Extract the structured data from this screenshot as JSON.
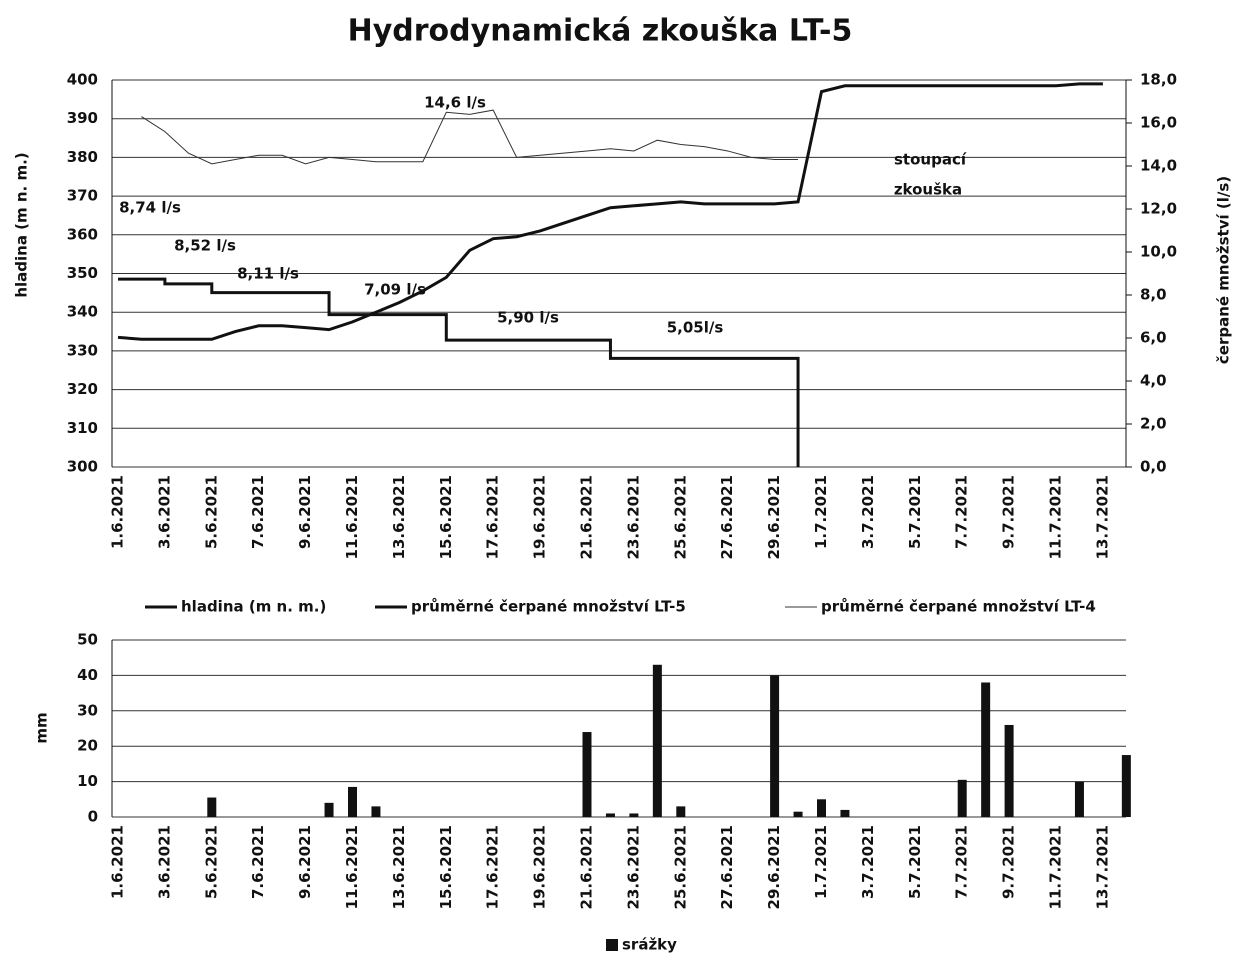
{
  "chart_data": [
    {
      "type": "line",
      "title": "Hydrodynamická zkouška LT-5",
      "ylabel": "hladina (m n. m.)",
      "y2label": "čerpané množství (l/s)",
      "categories": [
        "1.6.2021",
        null,
        "3.6.2021",
        null,
        "5.6.2021",
        null,
        "7.6.2021",
        null,
        "9.6.2021",
        null,
        "11.6.2021",
        null,
        "13.6.2021",
        null,
        "15.6.2021",
        null,
        "17.6.2021",
        null,
        "19.6.2021",
        null,
        "21.6.2021",
        null,
        "23.6.2021",
        null,
        "25.6.2021",
        null,
        "27.6.2021",
        null,
        "29.6.2021",
        null,
        "1.7.2021",
        null,
        "3.7.2021",
        null,
        "5.7.2021",
        null,
        "7.7.2021",
        null,
        "9.7.2021",
        null,
        "11.7.2021",
        null,
        "13.7.2021"
      ],
      "series": [
        {
          "name": "hladina (m n. m.)",
          "color": "#111111",
          "width": 3,
          "values": [
            333.5,
            333,
            333,
            333,
            333,
            335,
            336.5,
            336.5,
            336,
            335.5,
            337.5,
            340,
            342.5,
            345.5,
            349,
            356,
            359,
            359.5,
            361,
            363,
            365,
            367,
            367.5,
            368,
            368.5,
            368,
            368,
            368,
            368,
            368.5,
            397,
            398.5,
            398.5,
            398.5,
            398.5,
            398.5,
            398.5,
            398.5,
            398.5,
            398.5,
            398.5,
            399,
            399
          ]
        },
        {
          "name": "průměrné čerpané množství LT-5",
          "color": "#111111",
          "width": 3,
          "axis": "y2",
          "step": true,
          "values": [
            8.74,
            8.74,
            8.52,
            8.52,
            8.11,
            8.11,
            8.11,
            8.11,
            8.11,
            7.09,
            7.09,
            7.09,
            7.09,
            7.09,
            5.9,
            5.9,
            5.9,
            5.9,
            5.9,
            5.9,
            5.9,
            5.05,
            5.05,
            5.05,
            5.05,
            5.05,
            5.05,
            5.05,
            5.05,
            0,
            null,
            null,
            null,
            null,
            null,
            null,
            null,
            null,
            null,
            null,
            null,
            null,
            null
          ]
        },
        {
          "name": "průměrné čerpané množství LT-4",
          "color": "#333333",
          "width": 1,
          "axis": "y2",
          "values": [
            null,
            16.3,
            15.6,
            14.6,
            14.1,
            14.3,
            14.5,
            14.5,
            14.1,
            14.4,
            14.3,
            14.2,
            14.2,
            14.2,
            16.5,
            16.4,
            16.6,
            14.4,
            14.5,
            14.6,
            14.7,
            14.8,
            14.7,
            15.2,
            15.0,
            14.9,
            14.7,
            14.4,
            14.3,
            14.3,
            null,
            null,
            null,
            null,
            null,
            null,
            null,
            null,
            null,
            null,
            null,
            null,
            null
          ]
        }
      ],
      "annotations": [
        "14,6 l/s",
        "8,74 l/s",
        "8,52 l/s",
        "8,11 l/s",
        "7,09 l/s",
        "5,90 l/s",
        "5,05l/s",
        "stoupací",
        "zkouška"
      ],
      "ylim": [
        300,
        400
      ],
      "yticks": [
        300,
        310,
        320,
        330,
        340,
        350,
        360,
        370,
        380,
        390,
        400
      ],
      "y2lim": [
        0,
        18
      ],
      "y2ticks": [
        {
          "value": 0,
          "label": "0,0"
        },
        {
          "value": 2,
          "label": "2,0"
        },
        {
          "value": 4,
          "label": "4,0"
        },
        {
          "value": 6,
          "label": "6,0"
        },
        {
          "value": 8,
          "label": "8,0"
        },
        {
          "value": 10,
          "label": "10,0"
        },
        {
          "value": 12,
          "label": "12,0"
        },
        {
          "value": 14,
          "label": "14,0"
        },
        {
          "value": 16,
          "label": "16,0"
        },
        {
          "value": 18,
          "label": "18,0"
        }
      ],
      "grid": true,
      "legend": "bottom"
    },
    {
      "type": "bar",
      "ylabel": "mm",
      "categories": [
        "1.6.2021",
        null,
        "3.6.2021",
        null,
        "5.6.2021",
        null,
        "7.6.2021",
        null,
        "9.6.2021",
        null,
        "11.6.2021",
        null,
        "13.6.2021",
        null,
        "15.6.2021",
        null,
        "17.6.2021",
        null,
        "19.6.2021",
        null,
        "21.6.2021",
        null,
        "23.6.2021",
        null,
        "25.6.2021",
        null,
        "27.6.2021",
        null,
        "29.6.2021",
        null,
        "1.7.2021",
        null,
        "3.7.2021",
        null,
        "5.7.2021",
        null,
        "7.7.2021",
        null,
        "9.7.2021",
        null,
        "11.7.2021",
        null,
        "13.7.2021",
        null
      ],
      "series": [
        {
          "name": "srážky",
          "color": "#111111",
          "values": [
            0,
            0,
            0,
            0,
            5.5,
            0,
            0,
            0,
            0,
            4,
            8.5,
            3,
            0,
            0,
            0,
            0,
            0,
            0,
            0,
            0,
            24,
            1,
            1,
            43,
            3,
            0,
            0,
            0,
            40,
            1.5,
            5,
            2,
            0,
            0,
            0,
            0,
            10.5,
            38,
            26,
            0,
            0,
            10,
            0,
            17.5
          ]
        }
      ],
      "ylim": [
        0,
        50
      ],
      "yticks": [
        0,
        10,
        20,
        30,
        40,
        50
      ],
      "grid": true,
      "legend": "bottom"
    }
  ]
}
